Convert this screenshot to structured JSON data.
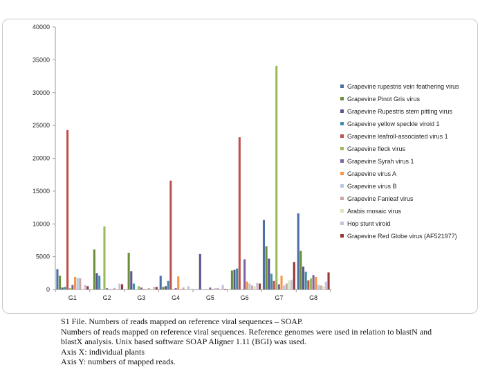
{
  "chart_data": {
    "type": "bar",
    "categories": [
      "G1",
      "G2",
      "G3",
      "G4",
      "G5",
      "G6",
      "G7",
      "G8"
    ],
    "ylim": [
      0,
      40000
    ],
    "yticks": [
      0,
      5000,
      10000,
      15000,
      20000,
      25000,
      30000,
      35000,
      40000
    ],
    "legend_position": "right",
    "series": [
      {
        "name": "Grapevine rupestris vein feathering virus",
        "color": "#4a6fa5",
        "values": [
          3100,
          0,
          0,
          2100,
          0,
          0,
          10600,
          11600
        ]
      },
      {
        "name": "Grapevine Pinot Gris virus",
        "color": "#6b8f3a",
        "values": [
          2100,
          6100,
          5600,
          400,
          0,
          2900,
          6600,
          5900
        ]
      },
      {
        "name": "Grapevine Rupestris stem pitting virus",
        "color": "#5d5590",
        "values": [
          300,
          2500,
          2800,
          500,
          5400,
          3000,
          4700,
          3500
        ]
      },
      {
        "name": "Grapevine yellow speckle viroid 1",
        "color": "#3f90a6",
        "values": [
          400,
          2100,
          900,
          1300,
          0,
          3200,
          2400,
          2700
        ]
      },
      {
        "name": "Grapevine leafroll-associated virus 1",
        "color": "#c0504d",
        "values": [
          24300,
          0,
          0,
          16600,
          0,
          23200,
          1300,
          1400
        ]
      },
      {
        "name": "Grapevine fleck virus",
        "color": "#9bbb59",
        "values": [
          200,
          9600,
          500,
          0,
          0,
          0,
          34100,
          1700
        ]
      },
      {
        "name": "Grapevine Syrah virus 1",
        "color": "#8064a2",
        "values": [
          700,
          200,
          300,
          200,
          300,
          4600,
          800,
          2200
        ]
      },
      {
        "name": "Grapevine virus A",
        "color": "#f79646",
        "values": [
          1900,
          0,
          100,
          2000,
          100,
          1200,
          2100,
          1900
        ]
      },
      {
        "name": "Grapevine virus B",
        "color": "#b8c7e0",
        "values": [
          1800,
          100,
          100,
          100,
          200,
          900,
          600,
          700
        ]
      },
      {
        "name": "Grapevine Fanleaf virus",
        "color": "#c9a5a4",
        "values": [
          1700,
          200,
          200,
          300,
          200,
          600,
          900,
          600
        ]
      },
      {
        "name": "Arabis mosaic virus",
        "color": "#d7e4bd",
        "values": [
          100,
          100,
          100,
          100,
          100,
          500,
          1400,
          500
        ]
      },
      {
        "name": "Hop stunt viroid",
        "color": "#c7bfdb",
        "values": [
          700,
          900,
          400,
          500,
          700,
          1000,
          1500,
          1200
        ]
      },
      {
        "name": "Grapevine Red Globe virus (AF521977)",
        "color": "#953735",
        "values": [
          500,
          800,
          400,
          0,
          100,
          900,
          4200,
          2600
        ]
      }
    ]
  },
  "caption": {
    "line1": "S1 File. Numbers of reads mapped on reference viral sequences – SOAP.",
    "line2": "Numbers of reads mapped on reference viral sequences. Reference genomes were used in relation to blastN and",
    "line3": "blastX analysis. Unix based software SOAP Aligner 1.11 (BGI) was used.",
    "line4": "Axis X: individual plants",
    "line5": "Axis Y: numbers of mapped reads."
  }
}
